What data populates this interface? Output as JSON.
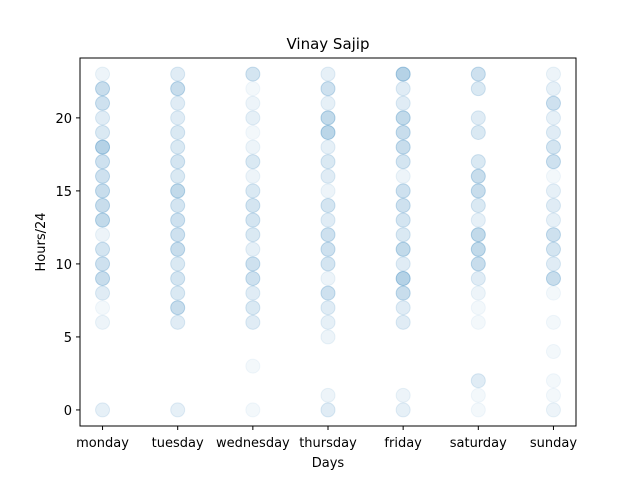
{
  "chart_data": {
    "type": "scatter",
    "title": "Vinay Sajip",
    "xlabel": "Days",
    "ylabel": "Hours/24",
    "categories": [
      "monday",
      "tuesday",
      "wednesday",
      "thursday",
      "friday",
      "saturday",
      "sunday"
    ],
    "yticks": [
      0,
      5,
      10,
      15,
      20
    ],
    "ylim": [
      -1.1,
      24.1
    ],
    "grid": false,
    "marker_color": "#1f77b4",
    "points": [
      {
        "day": "monday",
        "hours": [
          0,
          6,
          7,
          8,
          9,
          10,
          11,
          12,
          13,
          14,
          15,
          16,
          17,
          18,
          19,
          20,
          21,
          22,
          23
        ],
        "intensity": [
          0.2,
          0.15,
          0.1,
          0.25,
          0.45,
          0.4,
          0.35,
          0.15,
          0.5,
          0.45,
          0.45,
          0.4,
          0.4,
          0.6,
          0.3,
          0.25,
          0.4,
          0.45,
          0.15
        ]
      },
      {
        "day": "tuesday",
        "hours": [
          0,
          6,
          7,
          8,
          9,
          10,
          11,
          12,
          13,
          14,
          15,
          16,
          17,
          18,
          19,
          20,
          21,
          22,
          23
        ],
        "intensity": [
          0.2,
          0.25,
          0.45,
          0.3,
          0.35,
          0.3,
          0.45,
          0.4,
          0.4,
          0.35,
          0.5,
          0.3,
          0.35,
          0.3,
          0.3,
          0.25,
          0.25,
          0.45,
          0.25
        ]
      },
      {
        "day": "wednesday",
        "hours": [
          0,
          3,
          6,
          7,
          8,
          9,
          10,
          11,
          12,
          13,
          14,
          15,
          16,
          17,
          18,
          19,
          20,
          21,
          22,
          23
        ],
        "intensity": [
          0.1,
          0.1,
          0.25,
          0.3,
          0.25,
          0.4,
          0.4,
          0.2,
          0.3,
          0.35,
          0.35,
          0.3,
          0.15,
          0.3,
          0.15,
          0.1,
          0.2,
          0.15,
          0.1,
          0.35
        ]
      },
      {
        "day": "thursday",
        "hours": [
          0,
          1,
          5,
          6,
          7,
          8,
          9,
          10,
          11,
          12,
          13,
          14,
          15,
          16,
          17,
          18,
          19,
          20,
          21,
          22,
          23
        ],
        "intensity": [
          0.25,
          0.15,
          0.15,
          0.2,
          0.25,
          0.4,
          0.15,
          0.35,
          0.4,
          0.4,
          0.25,
          0.35,
          0.15,
          0.25,
          0.3,
          0.2,
          0.55,
          0.5,
          0.2,
          0.4,
          0.2
        ]
      },
      {
        "day": "friday",
        "hours": [
          0,
          1,
          6,
          7,
          8,
          9,
          10,
          11,
          12,
          13,
          14,
          15,
          16,
          17,
          18,
          19,
          20,
          21,
          22,
          23
        ],
        "intensity": [
          0.2,
          0.15,
          0.25,
          0.25,
          0.45,
          0.6,
          0.25,
          0.5,
          0.3,
          0.35,
          0.4,
          0.4,
          0.15,
          0.35,
          0.45,
          0.45,
          0.5,
          0.25,
          0.25,
          0.6
        ]
      },
      {
        "day": "saturday",
        "hours": [
          0,
          1,
          2,
          6,
          7,
          8,
          9,
          10,
          11,
          12,
          13,
          14,
          15,
          16,
          17,
          19,
          20,
          22,
          23
        ],
        "intensity": [
          0.1,
          0.1,
          0.25,
          0.1,
          0.1,
          0.15,
          0.25,
          0.45,
          0.5,
          0.5,
          0.2,
          0.3,
          0.45,
          0.45,
          0.3,
          0.3,
          0.25,
          0.3,
          0.4
        ]
      },
      {
        "day": "sunday",
        "hours": [
          0,
          1,
          2,
          4,
          6,
          8,
          9,
          10,
          11,
          12,
          13,
          14,
          15,
          16,
          17,
          18,
          19,
          20,
          21,
          22,
          23
        ],
        "intensity": [
          0.15,
          0.1,
          0.1,
          0.1,
          0.1,
          0.1,
          0.45,
          0.25,
          0.35,
          0.4,
          0.2,
          0.25,
          0.2,
          0.1,
          0.4,
          0.35,
          0.25,
          0.2,
          0.4,
          0.2,
          0.15
        ]
      }
    ]
  }
}
